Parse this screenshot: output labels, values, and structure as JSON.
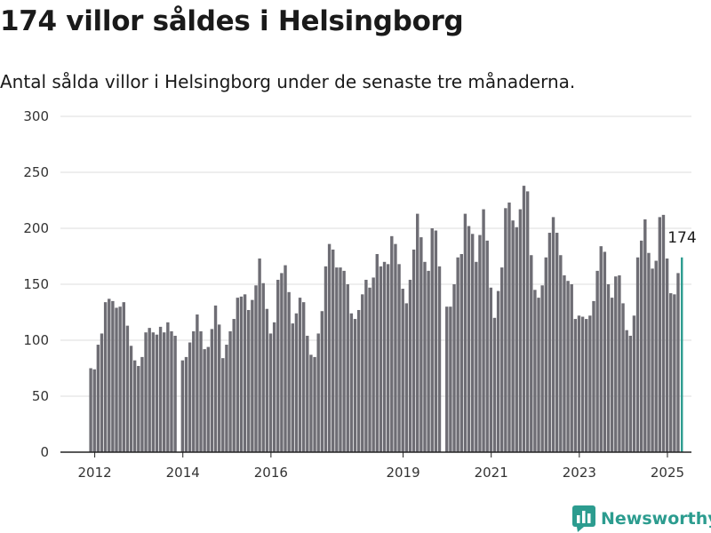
{
  "chart_data": {
    "type": "bar",
    "title": "174 villor såldes i Helsingborg",
    "subtitle": "Antal sålda villor i Helsingborg under de senaste tre månaderna.",
    "xlabel": "",
    "ylabel": "",
    "ylim": [
      0,
      300
    ],
    "yticks": [
      0,
      50,
      100,
      150,
      200,
      250,
      300
    ],
    "xticks": [
      "2012",
      "2014",
      "2016",
      "2019",
      "2021",
      "2023",
      "2025"
    ],
    "grid": true,
    "colors": {
      "bar": "#6e6d74",
      "highlight": "#2c9c8f"
    },
    "segments": [
      {
        "start": "2011-12",
        "values": [
          75,
          74,
          96,
          106,
          134,
          137,
          135,
          129,
          130,
          134,
          113,
          95,
          82,
          77,
          85,
          107,
          111,
          107,
          105,
          112,
          107,
          116,
          108,
          104
        ]
      },
      {
        "start": "2014-01",
        "values": [
          82,
          85,
          98,
          108,
          123,
          108,
          92,
          94,
          110,
          131,
          114,
          84,
          96,
          108,
          119,
          138,
          139,
          141,
          127,
          136,
          149,
          173,
          151,
          128,
          106,
          116,
          154,
          160,
          167,
          143,
          115,
          124,
          138,
          134,
          104,
          87,
          85,
          106,
          126,
          166,
          186,
          181,
          165,
          165,
          162,
          150,
          124,
          119,
          127,
          141,
          154,
          147,
          156,
          177,
          166,
          170,
          168,
          193,
          186,
          168,
          146,
          133,
          154,
          181,
          213,
          192,
          170,
          162,
          200,
          198,
          166
        ]
      },
      {
        "start": "2020-01",
        "values": [
          130,
          130,
          150,
          174,
          177,
          213,
          202,
          195,
          170,
          194,
          217,
          189,
          147,
          120,
          144,
          165,
          218,
          223,
          207,
          201,
          217,
          238,
          233,
          176,
          145,
          138,
          149,
          174,
          196,
          210,
          196,
          176,
          158,
          153,
          150,
          119,
          122,
          121,
          119,
          122,
          135,
          162,
          184,
          179,
          150,
          138,
          157,
          158,
          133,
          109,
          104,
          122,
          174,
          189,
          208,
          178,
          164,
          171,
          210,
          212,
          173,
          142,
          141,
          160,
          174
        ]
      }
    ],
    "last_value": 174,
    "last_label": "174"
  },
  "brand": {
    "name": "Newsworthy",
    "icon": "bar-chart-logo"
  }
}
